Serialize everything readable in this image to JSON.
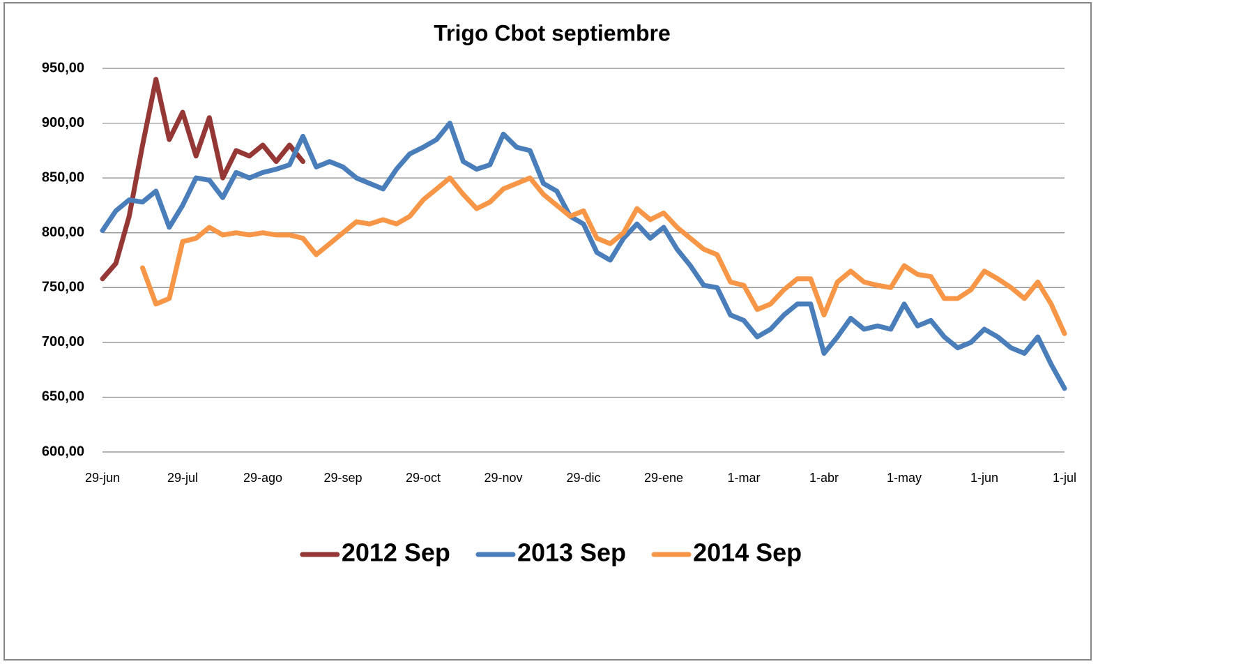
{
  "chart_data": {
    "type": "line",
    "title": "Trigo Cbot septiembre",
    "categories": [
      "29-jun",
      null,
      null,
      null,
      null,
      null,
      "29-jul",
      null,
      null,
      null,
      null,
      null,
      "29-ago",
      null,
      null,
      null,
      null,
      null,
      "29-sep",
      null,
      null,
      null,
      null,
      null,
      "29-oct",
      null,
      null,
      null,
      null,
      null,
      "29-nov",
      null,
      null,
      null,
      null,
      null,
      "29-dic",
      null,
      null,
      null,
      null,
      null,
      "29-ene",
      null,
      null,
      null,
      null,
      null,
      "1-mar",
      null,
      null,
      null,
      null,
      null,
      "1-abr",
      null,
      null,
      null,
      null,
      null,
      "1-may",
      null,
      null,
      null,
      null,
      null,
      "1-jun",
      null,
      null,
      null,
      null,
      null,
      "1-jul"
    ],
    "series": [
      {
        "name": "2012 Sep",
        "color": "#953735",
        "values": [
          758,
          772,
          815,
          880,
          940,
          885,
          910,
          870,
          905,
          850,
          875,
          870,
          880,
          865,
          880,
          865,
          null,
          null,
          null,
          null,
          null,
          null,
          null,
          null,
          null,
          null,
          null,
          null,
          null,
          null,
          null,
          null,
          null,
          null,
          null,
          null,
          null,
          null,
          null,
          null,
          null,
          null,
          null,
          null,
          null,
          null,
          null,
          null,
          null,
          null,
          null,
          null,
          null,
          null,
          null,
          null,
          null,
          null,
          null,
          null,
          null,
          null,
          null,
          null,
          null,
          null,
          null,
          null,
          null,
          null,
          null,
          null,
          null
        ]
      },
      {
        "name": "2013 Sep",
        "color": "#4a7ebb",
        "values": [
          802,
          820,
          830,
          828,
          838,
          805,
          825,
          850,
          848,
          832,
          855,
          850,
          855,
          858,
          862,
          888,
          860,
          865,
          860,
          850,
          845,
          840,
          858,
          872,
          878,
          885,
          900,
          865,
          858,
          862,
          890,
          878,
          875,
          845,
          838,
          815,
          808,
          782,
          775,
          795,
          808,
          795,
          805,
          785,
          770,
          752,
          750,
          725,
          720,
          705,
          712,
          725,
          735,
          735,
          690,
          705,
          722,
          712,
          715,
          712,
          735,
          715,
          720,
          705,
          695,
          700,
          712,
          705,
          695,
          690,
          705,
          680,
          658
        ]
      },
      {
        "name": "2014 Sep",
        "color": "#f79646",
        "values": [
          null,
          null,
          null,
          768,
          735,
          740,
          792,
          795,
          805,
          798,
          800,
          798,
          800,
          798,
          798,
          795,
          780,
          790,
          800,
          810,
          808,
          812,
          808,
          815,
          830,
          840,
          850,
          835,
          822,
          828,
          840,
          845,
          850,
          835,
          825,
          815,
          820,
          795,
          790,
          800,
          822,
          812,
          818,
          805,
          795,
          785,
          780,
          755,
          752,
          730,
          735,
          748,
          758,
          758,
          725,
          755,
          765,
          755,
          752,
          750,
          770,
          762,
          760,
          740,
          740,
          748,
          765,
          758,
          750,
          740,
          755,
          735,
          708
        ]
      }
    ],
    "ylim": [
      600,
      950
    ],
    "yticks": [
      {
        "value": 600,
        "label": "600,00"
      },
      {
        "value": 650,
        "label": "650,00"
      },
      {
        "value": 700,
        "label": "700,00"
      },
      {
        "value": 750,
        "label": "750,00"
      },
      {
        "value": 800,
        "label": "800,00"
      },
      {
        "value": 850,
        "label": "850,00"
      },
      {
        "value": 900,
        "label": "900,00"
      },
      {
        "value": 950,
        "label": "950,00"
      }
    ],
    "grid": true,
    "legend": "bottom"
  }
}
